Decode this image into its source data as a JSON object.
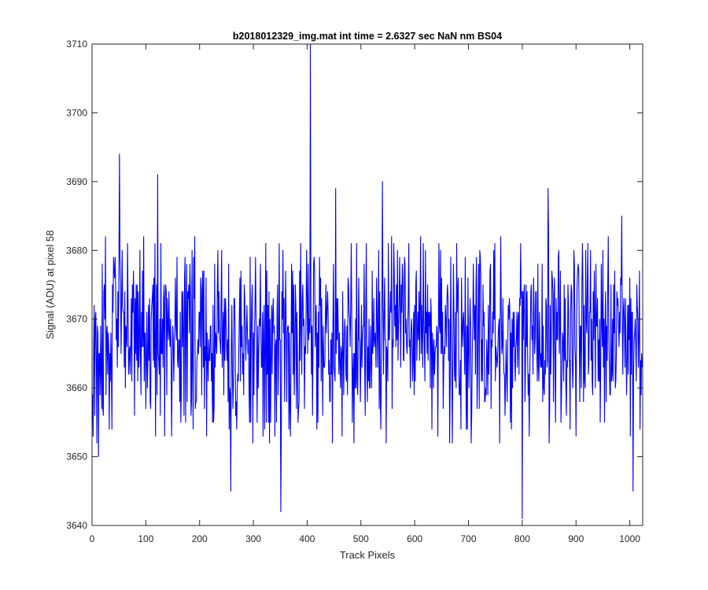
{
  "chart_data": {
    "type": "line",
    "title": "b2018012329_img.mat int time = 2.6327 sec  NaN nm BS04",
    "xlabel": "Track Pixels",
    "ylabel": "Signal (ADU) at pixel 58",
    "xlim": [
      0,
      1024
    ],
    "ylim": [
      3640,
      3710
    ],
    "xticks": [
      0,
      100,
      200,
      300,
      400,
      500,
      600,
      700,
      800,
      900,
      1000
    ],
    "yticks": [
      3640,
      3650,
      3660,
      3670,
      3680,
      3690,
      3700,
      3710
    ],
    "grid": false,
    "line_color": "#0000ff",
    "noise": {
      "n_points": 1024,
      "baseline": 3667,
      "typical_range": [
        3652,
        3682
      ]
    },
    "notable_points": [
      {
        "x": 12,
        "y": 3650
      },
      {
        "x": 51,
        "y": 3694
      },
      {
        "x": 122,
        "y": 3691
      },
      {
        "x": 258,
        "y": 3645
      },
      {
        "x": 351,
        "y": 3642
      },
      {
        "x": 406,
        "y": 3710
      },
      {
        "x": 453,
        "y": 3689
      },
      {
        "x": 540,
        "y": 3690
      },
      {
        "x": 800,
        "y": 3641
      },
      {
        "x": 848,
        "y": 3689
      },
      {
        "x": 985,
        "y": 3685
      },
      {
        "x": 1006,
        "y": 3645
      }
    ]
  }
}
